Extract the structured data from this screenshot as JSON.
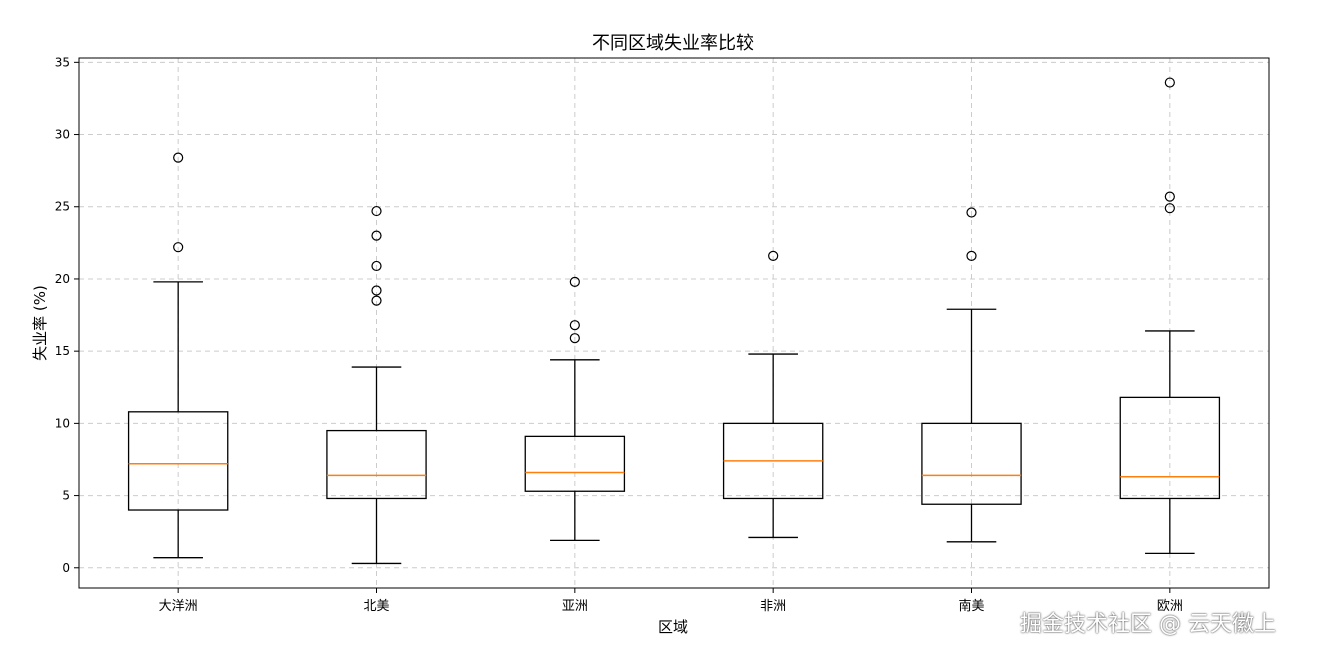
{
  "chart_data": {
    "type": "box",
    "title": "不同区域失业率比较",
    "xlabel": "区域",
    "ylabel": "失业率 (%)",
    "ylim": [
      -1.4,
      35.3
    ],
    "yticks": [
      0,
      5,
      10,
      15,
      20,
      25,
      30,
      35
    ],
    "grid": true,
    "categories": [
      "大洋洲",
      "北美",
      "亚洲",
      "非洲",
      "南美",
      "欧洲"
    ],
    "boxes": [
      {
        "whisker_low": 0.7,
        "q1": 4.0,
        "median": 7.2,
        "q3": 10.8,
        "whisker_high": 19.8,
        "outliers": [
          22.2,
          28.4
        ]
      },
      {
        "whisker_low": 0.3,
        "q1": 4.8,
        "median": 6.4,
        "q3": 9.5,
        "whisker_high": 13.9,
        "outliers": [
          18.5,
          19.2,
          20.9,
          23.0,
          24.7
        ]
      },
      {
        "whisker_low": 1.9,
        "q1": 5.3,
        "median": 6.6,
        "q3": 9.1,
        "whisker_high": 14.4,
        "outliers": [
          15.9,
          16.8,
          19.8
        ]
      },
      {
        "whisker_low": 2.1,
        "q1": 4.8,
        "median": 7.4,
        "q3": 10.0,
        "whisker_high": 14.8,
        "outliers": [
          21.6
        ]
      },
      {
        "whisker_low": 1.8,
        "q1": 4.4,
        "median": 6.4,
        "q3": 10.0,
        "whisker_high": 17.9,
        "outliers": [
          21.6,
          24.6
        ]
      },
      {
        "whisker_low": 1.0,
        "q1": 4.8,
        "median": 6.3,
        "q3": 11.8,
        "whisker_high": 16.4,
        "outliers": [
          24.9,
          25.7,
          33.6
        ]
      }
    ],
    "colors": {
      "box": "#000000",
      "median": "#ff7f0e",
      "grid": "#cccccc"
    }
  },
  "watermark": "掘金技术社区 @ 云天徽上"
}
